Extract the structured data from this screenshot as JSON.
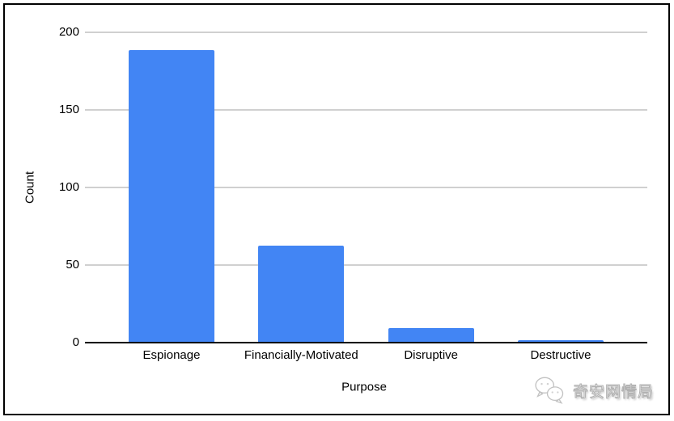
{
  "chart_data": {
    "type": "bar",
    "title": "",
    "categories": [
      "Espionage",
      "Financially-Motivated",
      "Disruptive",
      "Destructive"
    ],
    "values": [
      189,
      63,
      10,
      2
    ],
    "xlabel": "Purpose",
    "ylabel": "Count",
    "ylim": [
      0,
      200
    ],
    "yticks": [
      0,
      50,
      100,
      150,
      200
    ],
    "grid": true,
    "legend_position": "none",
    "bar_color": "#4285f4",
    "gridline_color": "#d0d0d0",
    "axis_line_color": "#000000",
    "text_color": "#000000"
  },
  "watermark": {
    "icon": "wechat-icon",
    "text": "奇安网情局"
  }
}
